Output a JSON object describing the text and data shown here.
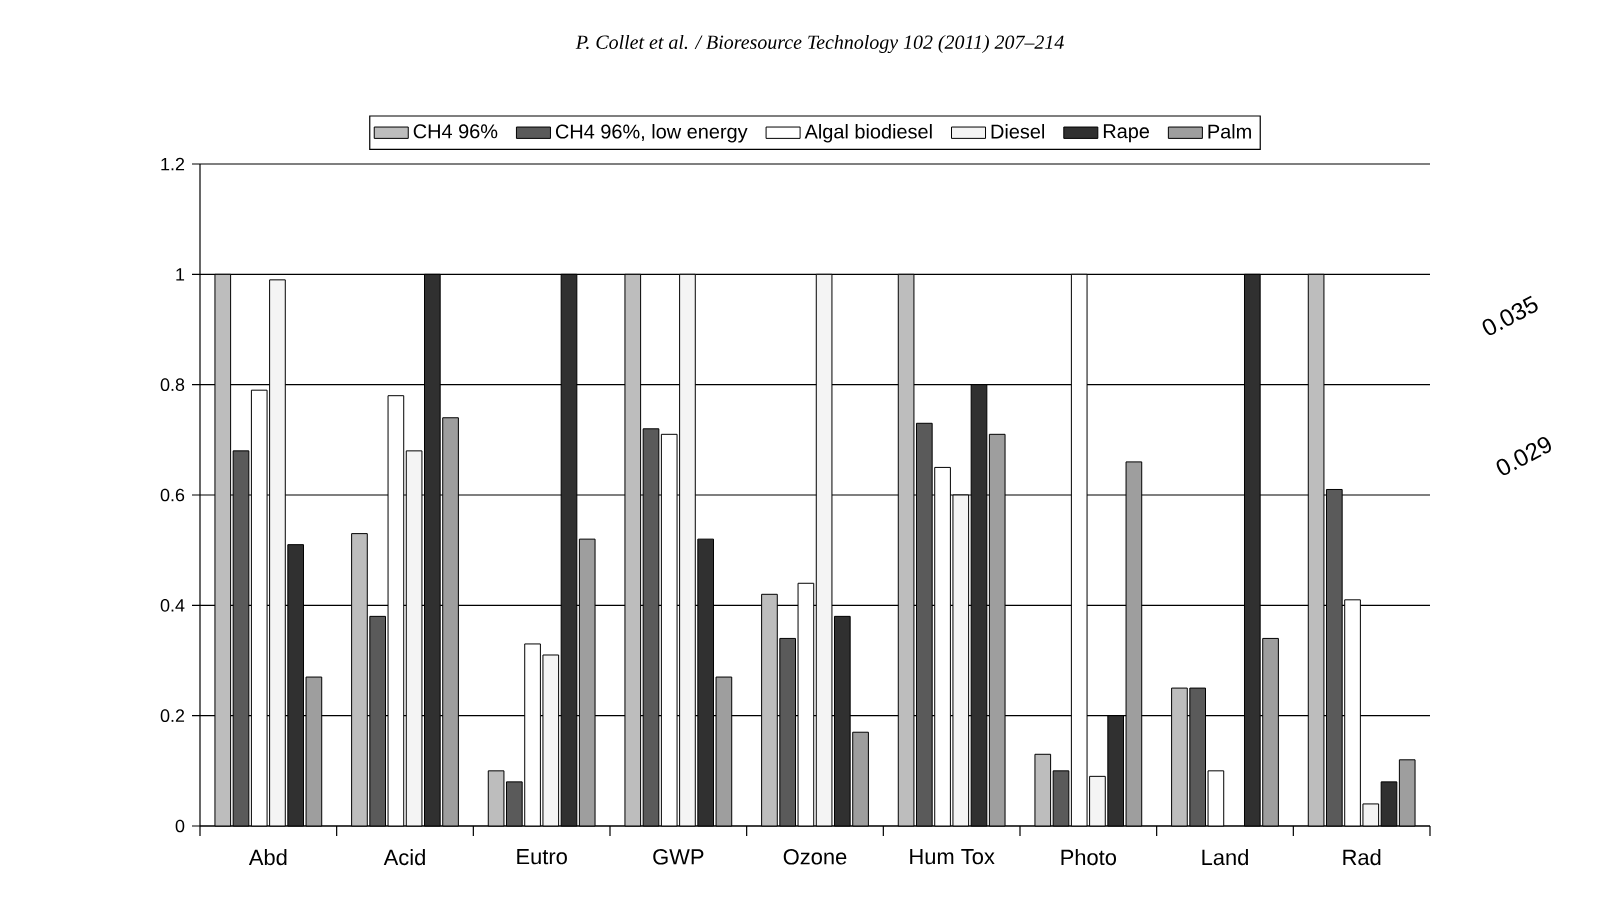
{
  "chart_data": {
    "type": "bar",
    "annotations": [
      "P. Collet et al. / Bioresource Technology 102 (2011) 207–214",
      "0.035",
      "0.029"
    ],
    "categories": [
      "Abd",
      "Acid",
      "Eutro",
      "GWP",
      "Ozone",
      "Hum Tox",
      "Photo",
      "Land",
      "Rad"
    ],
    "series": [
      {
        "name": "CH4 96%",
        "color": "#bdbdbd",
        "values": [
          1.0,
          0.53,
          0.1,
          1.0,
          0.42,
          1.0,
          0.13,
          0.25,
          1.0
        ]
      },
      {
        "name": "CH4 96%, low energy",
        "color": "#5a5a5a",
        "values": [
          0.68,
          0.38,
          0.08,
          0.72,
          0.34,
          0.73,
          0.1,
          0.25,
          0.61
        ]
      },
      {
        "name": "Algal biodiesel",
        "color": "#ffffff",
        "values": [
          0.79,
          0.78,
          0.33,
          0.71,
          0.44,
          0.65,
          1.0,
          0.1,
          0.41
        ]
      },
      {
        "name": "Diesel",
        "color": "#f4f4f4",
        "values": [
          0.99,
          0.68,
          0.31,
          1.0,
          1.0,
          0.6,
          0.09,
          null,
          0.04
        ]
      },
      {
        "name": "Rape",
        "color": "#303030",
        "values": [
          0.51,
          1.0,
          1.0,
          0.52,
          0.38,
          0.8,
          0.2,
          1.0,
          0.08
        ]
      },
      {
        "name": "Palm",
        "color": "#9e9e9e",
        "values": [
          0.27,
          0.74,
          0.52,
          0.27,
          0.17,
          0.71,
          0.66,
          0.34,
          0.12
        ]
      }
    ],
    "ylim": [
      0,
      1.2
    ],
    "yticks": [
      0,
      0.2,
      0.4,
      0.6,
      0.8,
      1,
      1.2
    ],
    "grid": "y",
    "legend": "top"
  }
}
